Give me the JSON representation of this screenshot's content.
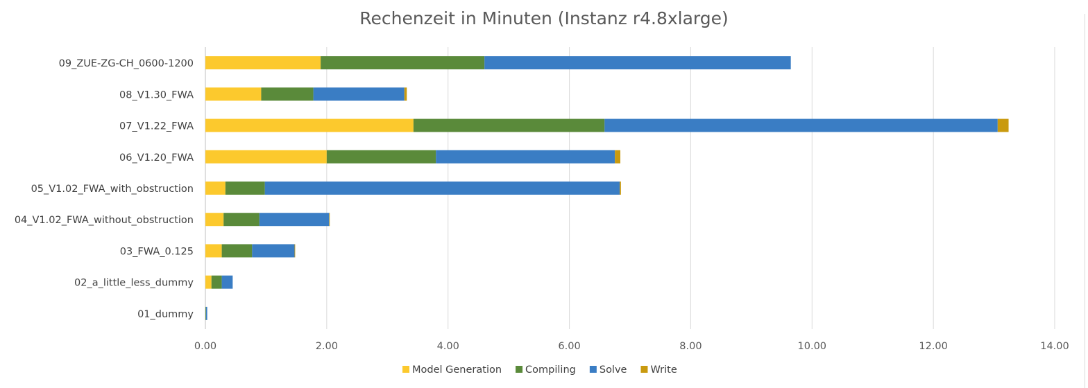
{
  "chart_data": {
    "type": "bar",
    "orientation": "horizontal",
    "stacked": true,
    "title": "Rechenzeit in Minuten (Instanz r4.8xlarge)",
    "xlabel": "",
    "ylabel": "",
    "xlim": [
      0,
      14
    ],
    "x_ticks": [
      0,
      2,
      4,
      6,
      8,
      10,
      12,
      14
    ],
    "x_tick_labels": [
      "0.00",
      "2.00",
      "4.00",
      "6.00",
      "8.00",
      "10.00",
      "12.00",
      "14.00"
    ],
    "grid": "vertical",
    "legend_position": "bottom",
    "categories": [
      "09_ZUE-ZG-CH_0600-1200",
      "08_V1.30_FWA",
      "07_V1.22_FWA",
      "06_V1.20_FWA",
      "05_V1.02_FWA_with_obstruction",
      "04_V1.02_FWA_without_obstruction",
      "03_FWA_0.125",
      "02_a_little_less_dummy",
      "01_dummy"
    ],
    "series": [
      {
        "name": "Model Generation",
        "color": "#fcc92d",
        "values": [
          1.9,
          0.92,
          3.43,
          2.0,
          0.33,
          0.3,
          0.27,
          0.1,
          0.0
        ]
      },
      {
        "name": "Compiling",
        "color": "#5a8a3a",
        "values": [
          2.7,
          0.86,
          3.15,
          1.8,
          0.65,
          0.59,
          0.5,
          0.17,
          0.01
        ]
      },
      {
        "name": "Solve",
        "color": "#3a7dc4",
        "values": [
          5.05,
          1.5,
          6.48,
          2.95,
          5.85,
          1.15,
          0.7,
          0.18,
          0.02
        ]
      },
      {
        "name": "Write",
        "color": "#c99a0f",
        "values": [
          0.0,
          0.04,
          0.18,
          0.09,
          0.02,
          0.01,
          0.01,
          0.0,
          0.0
        ]
      }
    ]
  }
}
